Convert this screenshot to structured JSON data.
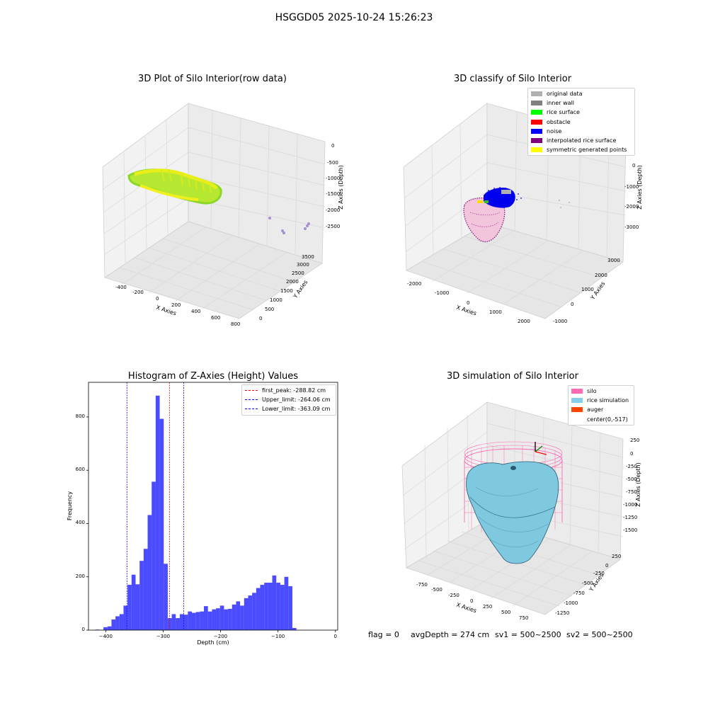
{
  "suptitle": "HSGGD05 2025-10-24 15:26:23",
  "footer": {
    "flag": "flag = 0",
    "avg_depth": "avgDepth = 274 cm",
    "sv1": "sv1 = 500~2500",
    "sv2": "sv2 = 500~2500"
  },
  "panels": {
    "raw": {
      "title": "3D Plot of Silo Interior(row data)",
      "xlabel": "X Axies",
      "ylabel": "Y Axies",
      "zlabel": "Z Axies (Depth)",
      "xticks": [
        "-400",
        "-200",
        "0",
        "200",
        "400",
        "600",
        "800"
      ],
      "yticks": [
        "0",
        "500",
        "1000",
        "1500",
        "2000",
        "2500",
        "3000",
        "3500"
      ],
      "zticks": [
        "0",
        "-500",
        "-1000",
        "-1500",
        "-2000",
        "-2500"
      ]
    },
    "classify": {
      "title": "3D classify of Silo Interior",
      "xlabel": "X Axies",
      "ylabel": "Y Axies",
      "zlabel": "Z Axies (Depth)",
      "xticks": [
        "-2000",
        "-1000",
        "0",
        "1000",
        "2000"
      ],
      "yticks": [
        "-1000",
        "0",
        "1000",
        "2000",
        "3000"
      ],
      "zticks": [
        "0",
        "-1000",
        "-2000",
        "-3000"
      ],
      "legend": [
        {
          "label": "original data",
          "color": "#b0b0b0"
        },
        {
          "label": "inner wall",
          "color": "#808080"
        },
        {
          "label": "rice surface",
          "color": "#00ff00"
        },
        {
          "label": "obstacle",
          "color": "#ff0000"
        },
        {
          "label": "noise",
          "color": "#0000ff"
        },
        {
          "label": "interpolated rice surface",
          "color": "#800080"
        },
        {
          "label": "symmetric generated points",
          "color": "#ffff00"
        }
      ]
    },
    "simulation": {
      "title": "3D simulation of Silo Interior",
      "xlabel": "X Axies",
      "ylabel": "Y Axies",
      "zlabel": "Z Axies (Depth)",
      "xticks": [
        "-750",
        "-500",
        "-250",
        "0",
        "250",
        "500",
        "750"
      ],
      "yticks": [
        "-1250",
        "-1000",
        "-750",
        "-500",
        "-250",
        "0",
        "250"
      ],
      "zticks": [
        "250",
        "0",
        "-250",
        "-500",
        "-750",
        "-1000",
        "-1250",
        "-1500"
      ],
      "legend": [
        {
          "label": "silo",
          "color": "#ff69b4"
        },
        {
          "label": "rice simulation",
          "color": "#87ceeb"
        },
        {
          "label": "auger",
          "color": "#ff4500"
        },
        {
          "label": "center(0,-517)",
          "color": ""
        }
      ]
    }
  },
  "chart_data": [
    {
      "type": "bar",
      "title": "Histogram of Z-Axies (Height) Values",
      "xlabel": "Depth (cm)",
      "ylabel": "Frequency",
      "bar_color": "#0000ff",
      "bins_start": -418,
      "bin_width": 7,
      "values": [
        2,
        1,
        11,
        14,
        40,
        52,
        60,
        92,
        170,
        208,
        172,
        260,
        305,
        432,
        557,
        880,
        793,
        249,
        45,
        60,
        45,
        60,
        58,
        70,
        65,
        68,
        70,
        90,
        70,
        78,
        82,
        92,
        78,
        80,
        96,
        108,
        92,
        120,
        130,
        140,
        158,
        170,
        178,
        178,
        205,
        178,
        170,
        200,
        165,
        8
      ],
      "xlim": [
        -430,
        4
      ],
      "ylim": [
        0,
        930
      ],
      "xticks": [
        -400,
        -300,
        -200,
        -100,
        0
      ],
      "yticks": [
        0,
        200,
        400,
        600,
        800
      ],
      "vlines": [
        {
          "label": "first_peak: -288.82 cm",
          "x": -288.82,
          "color": "#ff0000"
        },
        {
          "label": "Upper_limit: -264.06 cm",
          "x": -264.06,
          "color": "#0000ff"
        },
        {
          "label": "Lower_limit: -363.09 cm",
          "x": -363.09,
          "color": "#0000ff"
        }
      ],
      "legend_position": "top-right"
    }
  ]
}
